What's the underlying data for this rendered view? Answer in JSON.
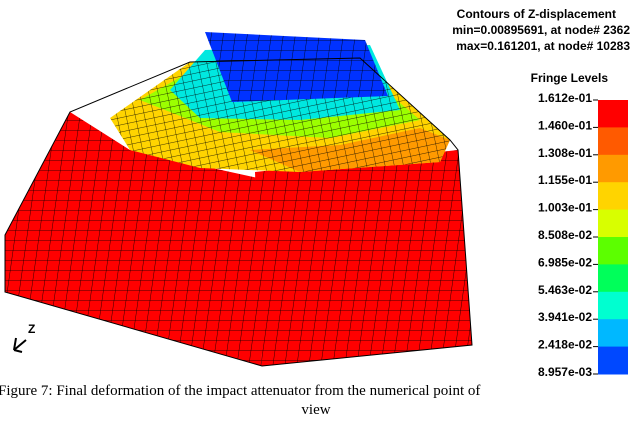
{
  "figure": {
    "legend": {
      "title": "Contours of Z-displacement",
      "min": "min=0.00895691, at node# 2362",
      "max": "max=0.161201, at node# 10283",
      "fringe_title": "Fringe Levels",
      "levels": [
        "1.612e-01",
        "1.460e-01",
        "1.308e-01",
        "1.155e-01",
        "1.003e-01",
        "8.508e-02",
        "6.985e-02",
        "5.463e-02",
        "3.941e-02",
        "2.418e-02",
        "8.957e-03"
      ],
      "colors": [
        "#ff0000",
        "#ff5a00",
        "#ff9a00",
        "#ffd400",
        "#d8ff00",
        "#5cff00",
        "#00ff5a",
        "#00ffd0",
        "#00b8ff",
        "#0048ff"
      ]
    },
    "axis_label": "Z",
    "caption": [
      "Figure 7: Final deformation of the impact attenuator from the numerical point of",
      "view"
    ]
  }
}
